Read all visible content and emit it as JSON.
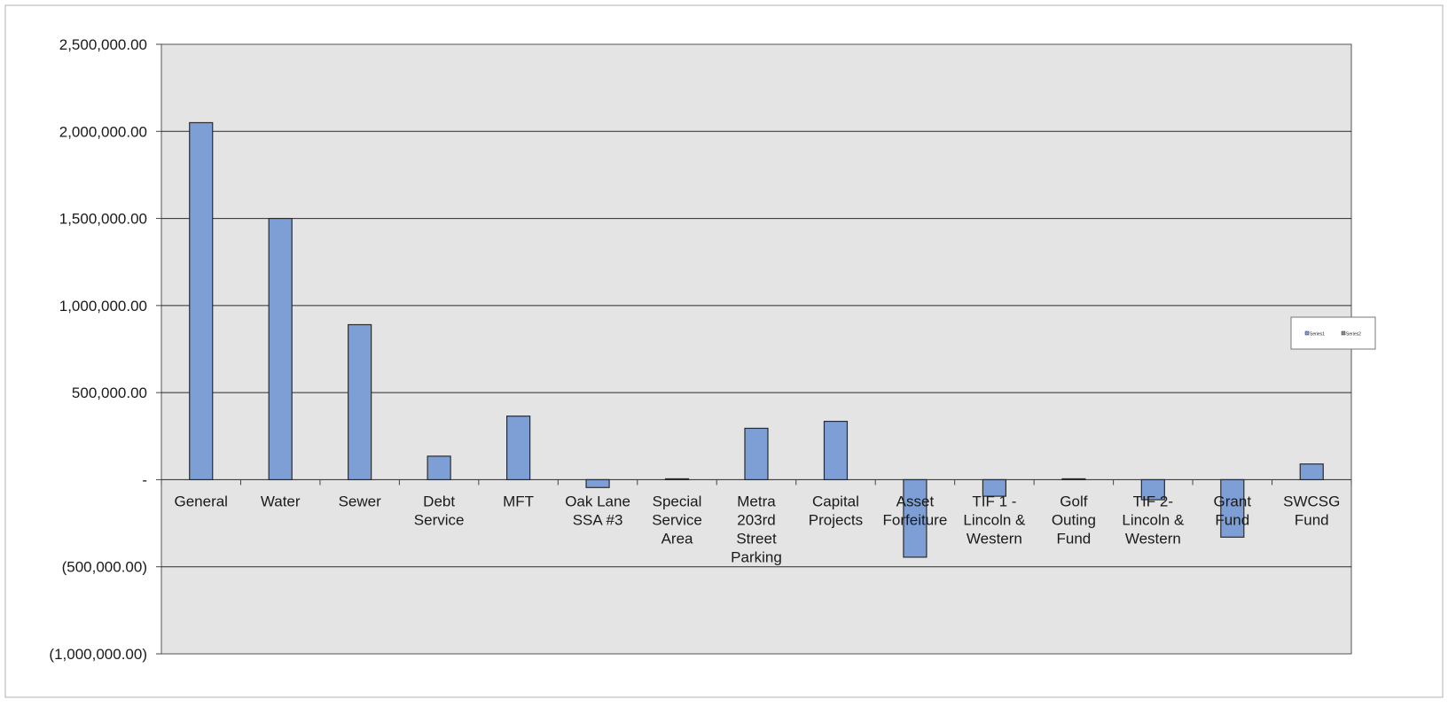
{
  "chart_data": {
    "type": "bar",
    "categories": [
      [
        "General"
      ],
      [
        "Water"
      ],
      [
        "Sewer"
      ],
      [
        "Debt",
        "Service"
      ],
      [
        "MFT"
      ],
      [
        "Oak Lane",
        "SSA #3"
      ],
      [
        "Special",
        "Service",
        "Area"
      ],
      [
        "Metra",
        "203rd",
        "Street",
        "Parking"
      ],
      [
        "Capital",
        "Projects"
      ],
      [
        "Asset",
        "Forfeiture"
      ],
      [
        "TIF 1 -",
        "Lincoln &",
        "Western"
      ],
      [
        "Golf",
        "Outing",
        "Fund"
      ],
      [
        "TIF 2-",
        "Lincoln &",
        "Western"
      ],
      [
        "Grant",
        "Fund"
      ],
      [
        "SWCSG",
        "Fund"
      ]
    ],
    "series": [
      {
        "name": "Series1",
        "values": [
          2050000,
          1500000,
          890000,
          135000,
          365000,
          -45000,
          5000,
          295000,
          335000,
          -445000,
          -95000,
          5000,
          -115000,
          -330000,
          90000
        ]
      }
    ],
    "ylim": [
      -1000000,
      2500000
    ],
    "y_tick_values": [
      2500000,
      2000000,
      1500000,
      1000000,
      500000,
      0,
      -500000,
      -1000000
    ],
    "y_tick_labels": [
      "2,500,000.00",
      "2,000,000.00",
      "1,500,000.00",
      "1,000,000.00",
      "500,000.00",
      "-",
      "(500,000.00)",
      "(1,000,000.00)"
    ],
    "grid": true,
    "legend": {
      "placement": "right",
      "entries": [
        "Series1",
        "Series2"
      ]
    },
    "colors": {
      "bar": "#7d9fd6",
      "plot_bg": "#e4e4e4",
      "grid": "#2a2a2a"
    }
  }
}
